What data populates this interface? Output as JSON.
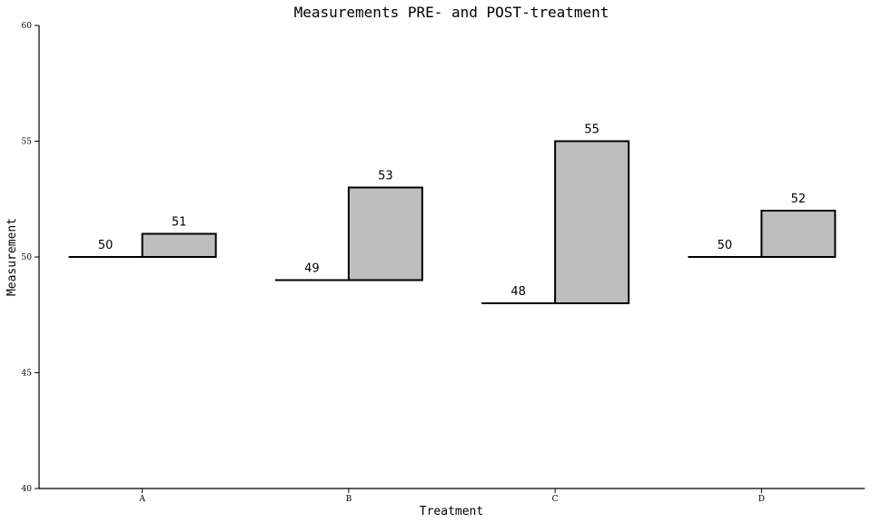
{
  "chart_data": {
    "type": "bar",
    "title": "Measurements PRE- and POST-treatment",
    "xlabel": "Treatment",
    "ylabel": "Measurement",
    "categories": [
      "A",
      "B",
      "C",
      "D"
    ],
    "series": [
      {
        "values": [
          50,
          49,
          48,
          50
        ]
      },
      {
        "values": [
          51,
          53,
          55,
          52
        ]
      }
    ],
    "ylim": [
      40,
      60
    ],
    "yticks": [
      "40",
      "45",
      "50",
      "55",
      "60"
    ],
    "grid": false,
    "colors": {
      "post_fill": "#bebebe",
      "stroke": "#000000"
    }
  }
}
